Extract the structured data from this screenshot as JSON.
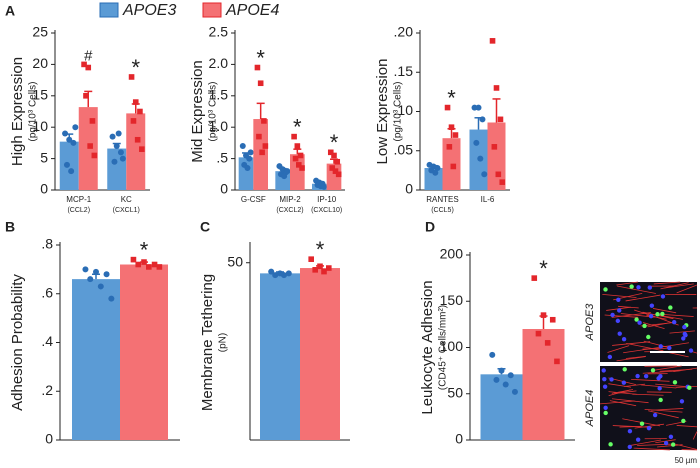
{
  "legend": [
    "APOE3",
    "APOE4"
  ],
  "image_panel": {
    "labels": [
      "APOE3",
      "APOE4"
    ],
    "scale_bar": "50 µm"
  },
  "chart_data": [
    {
      "type": "bar",
      "panel_label": "A",
      "ylabel": "High Expression",
      "ylabel_sub": "(pg/10³ Cells)",
      "categories": [
        "MCP-1",
        "KC"
      ],
      "category_sublabels": [
        "(CCL2)",
        "(CXCL1)"
      ],
      "annotations": [
        "#",
        "*"
      ],
      "series": [
        {
          "color": "#5b9bd5",
          "point_color": "#2a6db5",
          "values": [
            7.7,
            6.6
          ],
          "errors": [
            1.2,
            0.8
          ],
          "points": [
            [
              9,
              8,
              7.5,
              4,
              3,
              10
            ],
            [
              8.5,
              7,
              6,
              4.5,
              9,
              5
            ]
          ]
        },
        {
          "color": "#f47174",
          "point_color": "#e3262b",
          "values": [
            13.2,
            12.2
          ],
          "errors": [
            2.5,
            1.5
          ],
          "points": [
            [
              20,
              19.5,
              11,
              15,
              7,
              5.5
            ],
            [
              18,
              14,
              12.5,
              11,
              8,
              6.5
            ]
          ]
        }
      ],
      "ylim": [
        0,
        25
      ],
      "yticks": [
        0,
        5,
        10,
        15,
        20,
        25
      ]
    },
    {
      "type": "bar",
      "ylabel": "Mid Expression",
      "ylabel_sub": "(pg/10³ Cells)",
      "categories": [
        "G-CSF",
        "MIP-2",
        "IP-10"
      ],
      "category_sublabels": [
        null,
        "(CXCL2)",
        "(CXCL10)"
      ],
      "annotations": [
        "*",
        "*",
        "*"
      ],
      "series": [
        {
          "color": "#5b9bd5",
          "point_color": "#2a6db5",
          "values": [
            0.52,
            0.3,
            0.1
          ],
          "errors": [
            0.07,
            0.04,
            0.02
          ],
          "points": [
            [
              0.7,
              0.55,
              0.5,
              0.4,
              0.35,
              0.6
            ],
            [
              0.38,
              0.33,
              0.28,
              0.25,
              0.22,
              0.3
            ],
            [
              0.15,
              0.12,
              0.1,
              0.08,
              0.06,
              0.05
            ]
          ]
        },
        {
          "color": "#f47174",
          "point_color": "#e3262b",
          "values": [
            1.13,
            0.57,
            0.42
          ],
          "errors": [
            0.25,
            0.08,
            0.07
          ],
          "points": [
            [
              1.95,
              1.7,
              1.1,
              0.85,
              0.6,
              0.7
            ],
            [
              0.85,
              0.7,
              0.55,
              0.5,
              0.4,
              0.35
            ],
            [
              0.6,
              0.55,
              0.45,
              0.35,
              0.3,
              0.25
            ]
          ]
        }
      ],
      "ylim": [
        0,
        2.5
      ],
      "yticks": [
        0,
        {
          "value": 0.5,
          "label": ".5"
        },
        {
          "value": 1,
          "label": "1.0"
        },
        1.5,
        {
          "value": 2,
          "label": "2.0"
        },
        2.5
      ]
    },
    {
      "type": "bar",
      "ylabel": "Low Expression",
      "ylabel_sub": "(pg/10³ Cells)",
      "categories": [
        "RANTES",
        "IL-6"
      ],
      "category_sublabels": [
        "(CCL5)",
        null
      ],
      "annotations": [
        "*",
        null
      ],
      "series": [
        {
          "color": "#5b9bd5",
          "point_color": "#2a6db5",
          "values": [
            0.028,
            0.077
          ],
          "errors": [
            0.003,
            0.015
          ],
          "points": [
            [
              0.032,
              0.03,
              0.028,
              0.025,
              0.022
            ],
            [
              0.105,
              0.105,
              0.09,
              0.06,
              0.04,
              0.02
            ]
          ]
        },
        {
          "color": "#f47174",
          "point_color": "#e3262b",
          "values": [
            0.066,
            0.086
          ],
          "errors": [
            0.012,
            0.03
          ],
          "points": [
            [
              0.105,
              0.08,
              0.07,
              0.055,
              0.03
            ],
            [
              0.19,
              0.13,
              0.09,
              0.055,
              0.02,
              0.01
            ]
          ]
        }
      ],
      "ylim": [
        0,
        0.2
      ],
      "yticks": [
        0,
        {
          "value": 0.05,
          "label": ".05"
        },
        {
          "value": 0.1,
          "label": ".10"
        },
        {
          "value": 0.15,
          "label": ".15"
        },
        {
          "value": 0.2,
          "label": ".20"
        }
      ]
    },
    {
      "type": "bar",
      "panel_label": "B",
      "ylabel": "Adhesion Probability",
      "annotations": [
        "*"
      ],
      "series": [
        {
          "color": "#5b9bd5",
          "point_color": "#2a6db5",
          "values": [
            0.66
          ],
          "errors": [
            0.02
          ],
          "points": [
            [
              0.7,
              0.69,
              0.68,
              0.66,
              0.63,
              0.58
            ]
          ]
        },
        {
          "color": "#f47174",
          "point_color": "#e3262b",
          "values": [
            0.72
          ],
          "errors": [
            0.01
          ],
          "points": [
            [
              0.74,
              0.73,
              0.72,
              0.72,
              0.71,
              0.71
            ]
          ]
        }
      ],
      "ylim": [
        0,
        0.8
      ],
      "yticks": [
        0,
        {
          "value": 0.2,
          "label": ".2"
        },
        {
          "value": 0.4,
          "label": ".4"
        },
        {
          "value": 0.6,
          "label": ".6"
        },
        {
          "value": 0.8,
          "label": ".8"
        }
      ]
    },
    {
      "type": "bar",
      "panel_label": "C",
      "ylabel": "Membrane Tethering",
      "ylabel_sub": "(pN)",
      "annotations": [
        "*"
      ],
      "series": [
        {
          "color": "#5b9bd5",
          "point_color": "#2a6db5",
          "values": [
            47
          ],
          "errors": [
            0.4
          ],
          "points": [
            [
              47.5,
              47,
              47,
              46.5,
              46.5
            ]
          ]
        },
        {
          "color": "#f47174",
          "point_color": "#e3262b",
          "values": [
            48.5
          ],
          "errors": [
            0.6
          ],
          "points": [
            [
              51,
              49,
              48.5,
              48,
              47.5
            ]
          ]
        }
      ],
      "ylim": [
        0,
        55
      ],
      "yticks": [
        50
      ]
    },
    {
      "type": "bar",
      "panel_label": "D",
      "ylabel": "Leukocyte Adhesion",
      "ylabel_sub": "(CD45⁺ Cells/mm²)",
      "annotations": [
        "*"
      ],
      "series": [
        {
          "color": "#5b9bd5",
          "point_color": "#2a6db5",
          "values": [
            71
          ],
          "errors": [
            6
          ],
          "points": [
            [
              92,
              75,
              70,
              65,
              60,
              52
            ]
          ]
        },
        {
          "color": "#f47174",
          "point_color": "#e3262b",
          "values": [
            120
          ],
          "errors": [
            14
          ],
          "points": [
            [
              175,
              135,
              130,
              115,
              105,
              85
            ]
          ]
        }
      ],
      "ylim": [
        0,
        200
      ],
      "yticks": [
        0,
        50,
        100,
        150,
        200
      ]
    }
  ]
}
